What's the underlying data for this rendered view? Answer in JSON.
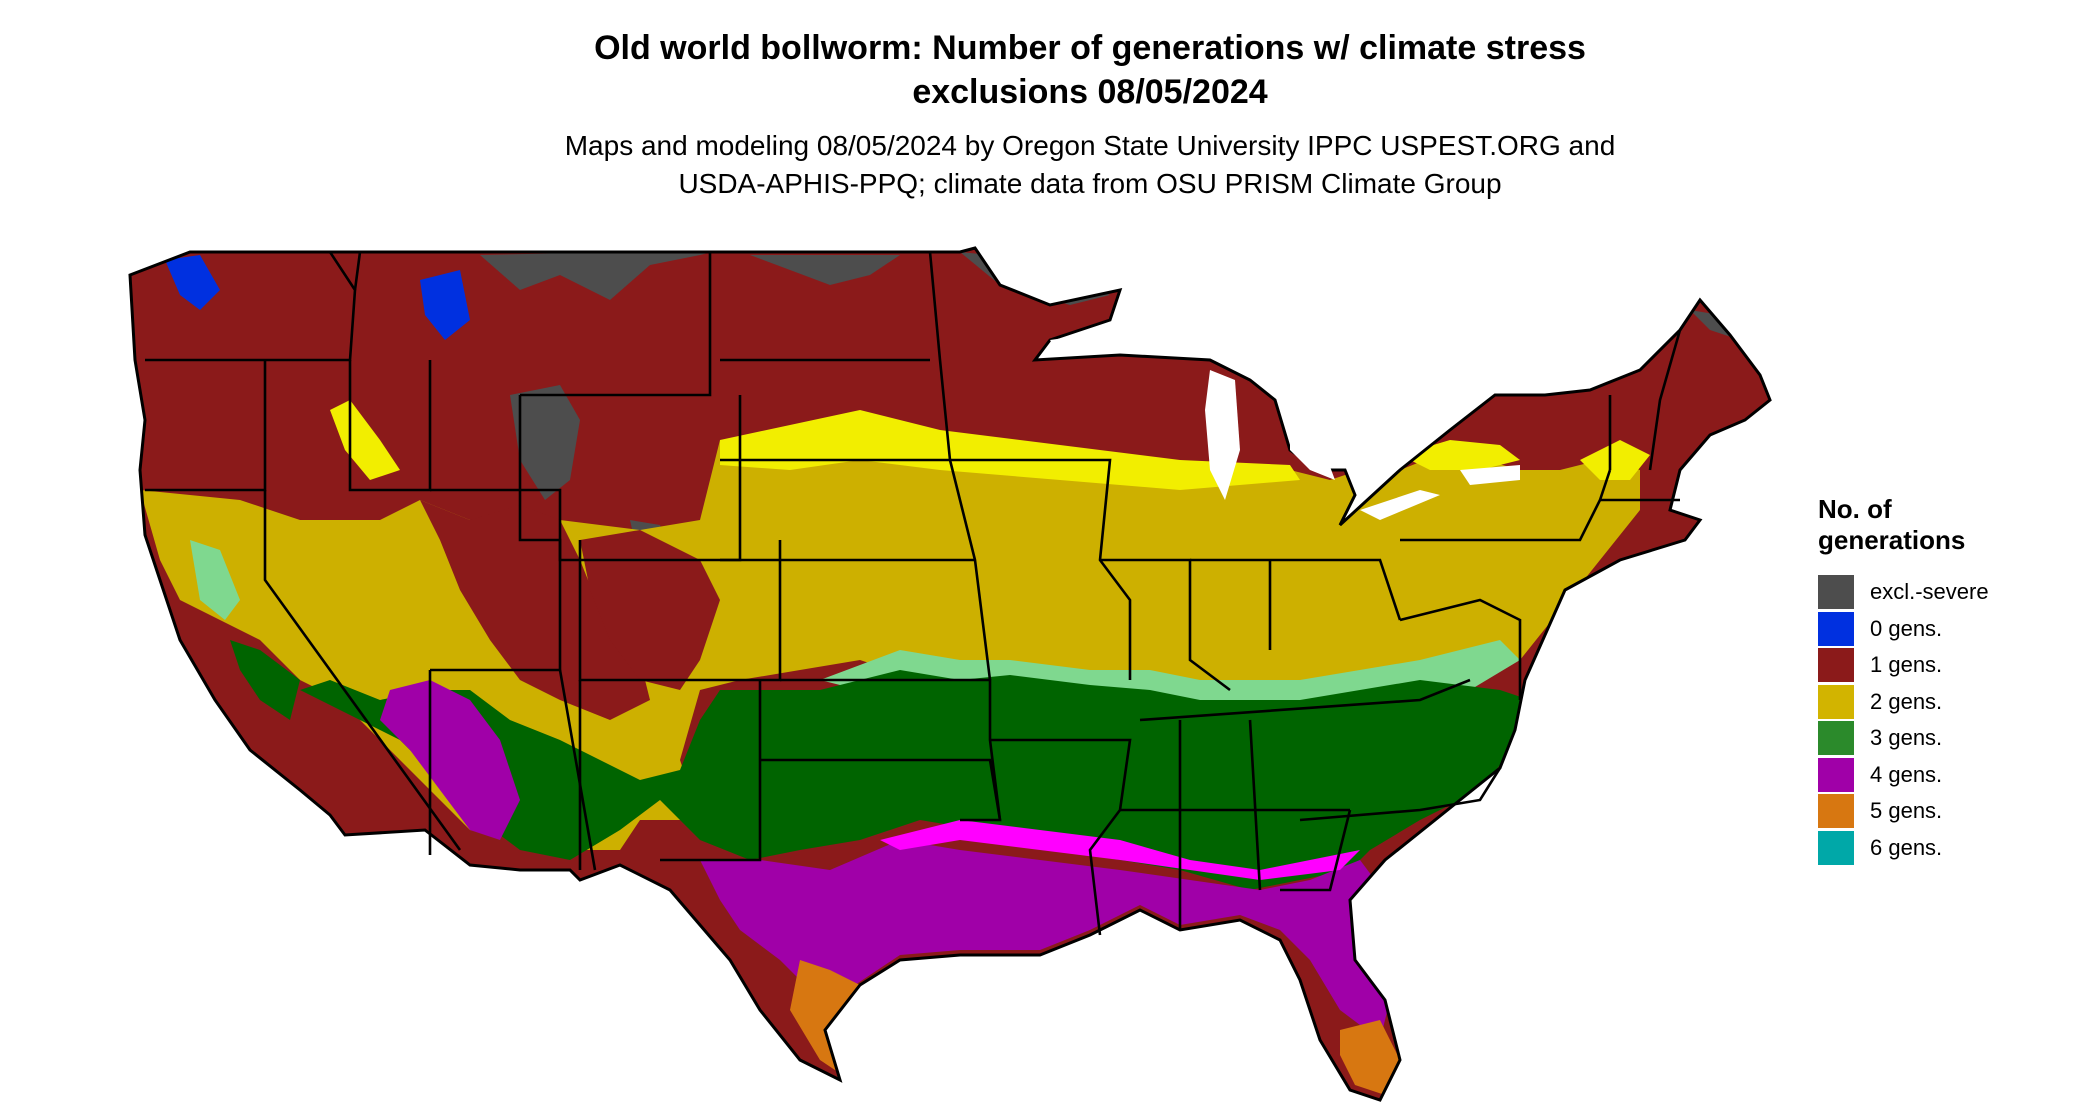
{
  "header": {
    "title_line1": "Old world bollworm: Number of generations w/ climate stress",
    "title_line2": "exclusions 08/05/2024",
    "subtitle_line1": "Maps and modeling 08/05/2024 by Oregon State University IPPC USPEST.ORG and",
    "subtitle_line2": "USDA-APHIS-PPQ; climate data from OSU PRISM Climate Group"
  },
  "legend": {
    "title_line1": "No. of",
    "title_line2": "generations",
    "items": [
      {
        "label": "excl.-severe",
        "color": "#4d4d4d"
      },
      {
        "label": "0 gens.",
        "color": "#0030e0"
      },
      {
        "label": "1 gens.",
        "color": "#8b1a1a"
      },
      {
        "label": "2 gens.",
        "color": "#d2b400"
      },
      {
        "label": "3 gens.",
        "color": "#2b8a2b"
      },
      {
        "label": "4 gens.",
        "color": "#a000a8"
      },
      {
        "label": "5 gens.",
        "color": "#d77711"
      },
      {
        "label": "6 gens.",
        "color": "#00a8a8"
      }
    ]
  },
  "map_colors": {
    "excl_severe": "#4d4d4d",
    "gens_0": "#0030e0",
    "gens_1": "#8b1a1a",
    "gens_2": "#cdb000",
    "gens_2_bright": "#f2ee00",
    "gens_3": "#006400",
    "gens_3_light": "#7fd88f",
    "gens_4": "#a000a8",
    "gens_4_bright": "#ff00ff",
    "gens_5": "#d77711",
    "gens_6": "#00b8b8",
    "state_border": "#000000"
  }
}
